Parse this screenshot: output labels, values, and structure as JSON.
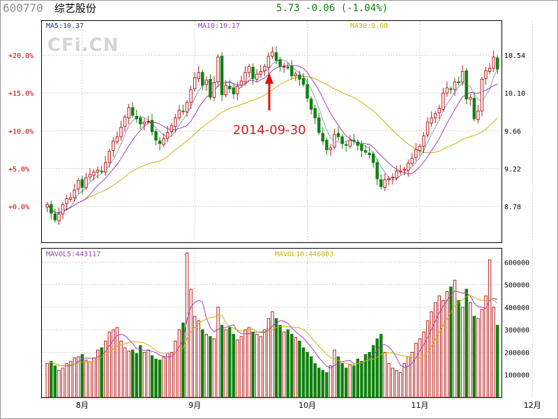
{
  "header": {
    "code": "600770",
    "name": "综艺股份",
    "quote": "5.73 -0.06 (-1.04%)"
  },
  "watermark": "CFi.CN",
  "ma_labels": [
    {
      "text": "MA5:10.37",
      "color": "#1a3a8c"
    },
    {
      "text": "MA10:10.17",
      "color": "#a040c0"
    },
    {
      "text": "MA30:9.68",
      "color": "#c8b400"
    }
  ],
  "vol_ma_labels": [
    {
      "text": "MAVOL5:443117",
      "color": "#a040c0"
    },
    {
      "text": "MAVOL10:446083",
      "color": "#c8b400"
    }
  ],
  "annotation": {
    "text": "2014-09-30",
    "color": "#d21f1f"
  },
  "chart_data": {
    "type": "candlestick-volume",
    "title": "",
    "colors": {
      "up": "#b81c1c",
      "down": "#11800f",
      "ma5": "#1a3a8c",
      "ma10": "#a040c0",
      "ma30": "#c8b400"
    },
    "price_axis": {
      "left_ticks": [
        "+20.0%",
        "+15.0%",
        "+10.0%",
        "+5.0%",
        "+0.0%"
      ],
      "right_ticks": [
        "10.54",
        "10.10",
        "9.66",
        "9.22",
        "8.78"
      ],
      "right_values": [
        10.54,
        10.1,
        9.66,
        9.22,
        8.78
      ],
      "ylim": [
        8.36,
        10.94
      ],
      "grid": true
    },
    "volume_axis": {
      "ticks": [
        "600000",
        "500000",
        "400000",
        "300000",
        "200000",
        "100000"
      ],
      "tick_values": [
        600000,
        500000,
        400000,
        300000,
        200000,
        100000
      ],
      "ylim": [
        0,
        660000
      ]
    },
    "x_labels": [
      {
        "text": "8月",
        "index": 9
      },
      {
        "text": "9月",
        "index": 38
      },
      {
        "text": "10月",
        "index": 67
      },
      {
        "text": "11月",
        "index": 96
      },
      {
        "text": "12月",
        "index": 125
      }
    ],
    "closes": [
      8.8,
      8.7,
      8.62,
      8.69,
      8.8,
      8.87,
      8.88,
      8.97,
      9.08,
      9.0,
      9.11,
      9.15,
      9.18,
      9.2,
      9.19,
      9.29,
      9.42,
      9.54,
      9.59,
      9.7,
      9.82,
      9.93,
      9.84,
      9.8,
      9.74,
      9.76,
      9.77,
      9.65,
      9.55,
      9.51,
      9.57,
      9.64,
      9.72,
      9.81,
      9.9,
      9.89,
      9.99,
      10.14,
      10.28,
      10.34,
      10.19,
      10.25,
      10.05,
      10.22,
      10.52,
      10.08,
      10.19,
      10.15,
      10.09,
      10.18,
      10.24,
      10.34,
      10.41,
      10.27,
      10.32,
      10.35,
      10.41,
      10.53,
      10.58,
      10.48,
      10.41,
      10.41,
      10.4,
      10.3,
      10.32,
      10.26,
      10.2,
      10.04,
      9.91,
      9.81,
      9.64,
      9.54,
      9.44,
      9.46,
      9.62,
      9.59,
      9.51,
      9.49,
      9.55,
      9.54,
      9.49,
      9.43,
      9.41,
      9.38,
      9.29,
      9.1,
      9.01,
      9.09,
      9.1,
      9.12,
      9.19,
      9.19,
      9.21,
      9.28,
      9.34,
      9.44,
      9.48,
      9.6,
      9.76,
      9.81,
      9.86,
      9.92,
      10.1,
      10.16,
      10.15,
      10.23,
      10.22,
      10.35,
      10.03,
      10.05,
      9.8,
      9.89,
      10.26,
      10.36,
      10.39,
      10.52,
      10.38
    ],
    "volumes": [
      150000,
      160000,
      140000,
      120000,
      130000,
      150000,
      160000,
      175000,
      180000,
      190000,
      165000,
      158000,
      175000,
      210000,
      220000,
      250000,
      290000,
      300000,
      310000,
      250000,
      220000,
      205000,
      210000,
      195000,
      230000,
      200000,
      210000,
      185000,
      170000,
      165000,
      180000,
      195000,
      200000,
      250000,
      300000,
      330000,
      640000,
      480000,
      360000,
      340000,
      300000,
      280000,
      270000,
      260000,
      400000,
      320000,
      300000,
      310000,
      280000,
      255000,
      270000,
      300000,
      310000,
      290000,
      280000,
      270000,
      300000,
      350000,
      380000,
      350000,
      320000,
      290000,
      300000,
      280000,
      265000,
      250000,
      220000,
      200000,
      180000,
      150000,
      130000,
      120000,
      110000,
      140000,
      210000,
      180000,
      150000,
      130000,
      145000,
      140000,
      170000,
      160000,
      190000,
      200000,
      230000,
      260000,
      280000,
      200000,
      150000,
      130000,
      120000,
      110000,
      150000,
      180000,
      200000,
      240000,
      260000,
      290000,
      340000,
      380000,
      420000,
      450000,
      430000,
      470000,
      490000,
      520000,
      430000,
      400000,
      480000,
      420000,
      360000,
      350000,
      390000,
      450000,
      610000,
      400000,
      320000
    ],
    "ma5_last": 10.37,
    "ma10_last": 10.17,
    "ma30_last": 9.68,
    "mavol5_last": 443117,
    "mavol10_last": 446083
  }
}
